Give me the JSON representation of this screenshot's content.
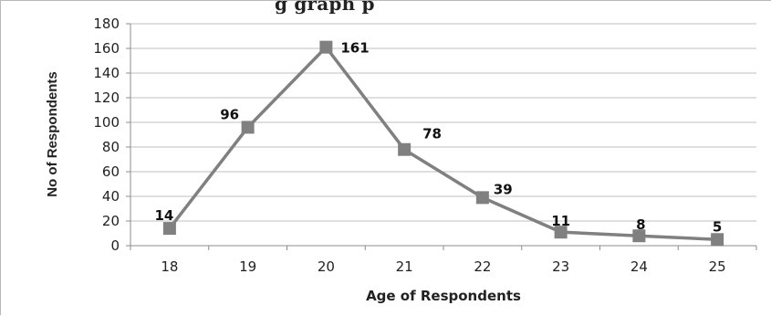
{
  "chart_data": {
    "type": "line",
    "title_fragment": "g      graph         p",
    "xlabel": "Age of Respondents",
    "ylabel": "No of Respondents",
    "categories": [
      "18",
      "19",
      "20",
      "21",
      "22",
      "23",
      "24",
      "25"
    ],
    "series": [
      {
        "values": [
          14,
          96,
          161,
          78,
          39,
          11,
          8,
          5
        ],
        "color": "#808080"
      }
    ],
    "data_labels": [
      "14",
      "96",
      "161",
      "78",
      "39",
      "11",
      "8",
      "5"
    ],
    "ylim": [
      0,
      180
    ],
    "yticks": [
      "0",
      "20",
      "40",
      "60",
      "80",
      "100",
      "120",
      "140",
      "160",
      "180"
    ],
    "grid": true,
    "legend": "none",
    "marker": "square"
  }
}
